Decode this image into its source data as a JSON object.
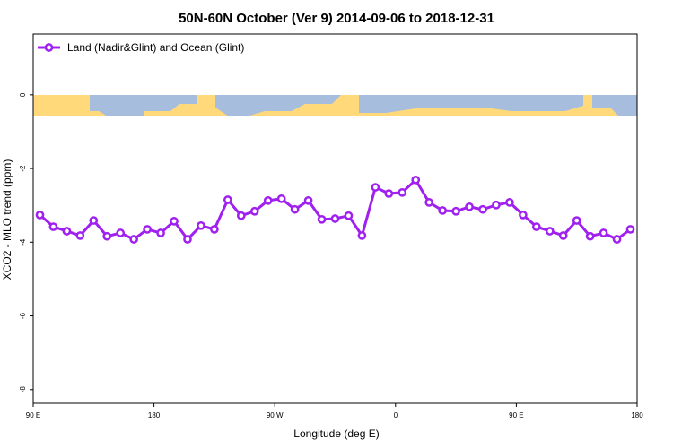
{
  "chart_data": {
    "type": "line",
    "title": "50N-60N October (Ver 9)   2014-09-06 to 2018-12-31",
    "x_label": "Longitude (deg E)",
    "y_label": "XCO2 - MLO trend (ppm)",
    "legend": "top-left",
    "xlim": [
      90,
      540
    ],
    "ylim": [
      -8.37,
      1.65
    ],
    "xticks": [
      {
        "value": 90,
        "label": "90 E"
      },
      180,
      {
        "value": 270,
        "label": "90 W"
      },
      {
        "value": 360,
        "label": "0"
      },
      {
        "value": 450,
        "label": "90 E"
      },
      {
        "value": 540,
        "label": "180"
      }
    ],
    "yticks": [
      0,
      -2,
      -4,
      -6,
      -8
    ],
    "x": [
      95,
      105,
      115,
      125,
      135,
      145,
      155,
      165,
      175,
      185,
      195,
      205,
      215,
      225,
      235,
      245,
      255,
      265,
      275,
      285,
      295,
      305,
      315,
      325,
      335,
      345,
      355,
      365,
      375,
      385,
      395,
      405,
      415,
      425,
      435,
      445,
      455,
      465,
      475,
      485,
      495,
      505,
      515,
      525,
      535
    ],
    "series": [
      {
        "name": "Land (Nadir&Glint) and Ocean (Glint)",
        "color": "#a020f0",
        "values": [
          -3.26,
          -3.58,
          -3.7,
          -3.82,
          -3.41,
          -3.84,
          -3.75,
          -3.92,
          -3.65,
          -3.75,
          -3.43,
          -3.92,
          -3.55,
          -3.65,
          -2.85,
          -3.28,
          -3.16,
          -2.87,
          -2.82,
          -3.11,
          -2.87,
          -3.38,
          -3.36,
          -3.28,
          -3.82,
          -2.51,
          -2.68,
          -2.65,
          -2.31,
          -2.92,
          -3.14,
          -3.16,
          -3.04,
          -3.11,
          -2.99,
          -2.92,
          -3.26,
          -3.58,
          -3.7,
          -3.82,
          -3.41,
          -3.84,
          -3.75,
          -3.92,
          -3.65
        ]
      }
    ]
  }
}
